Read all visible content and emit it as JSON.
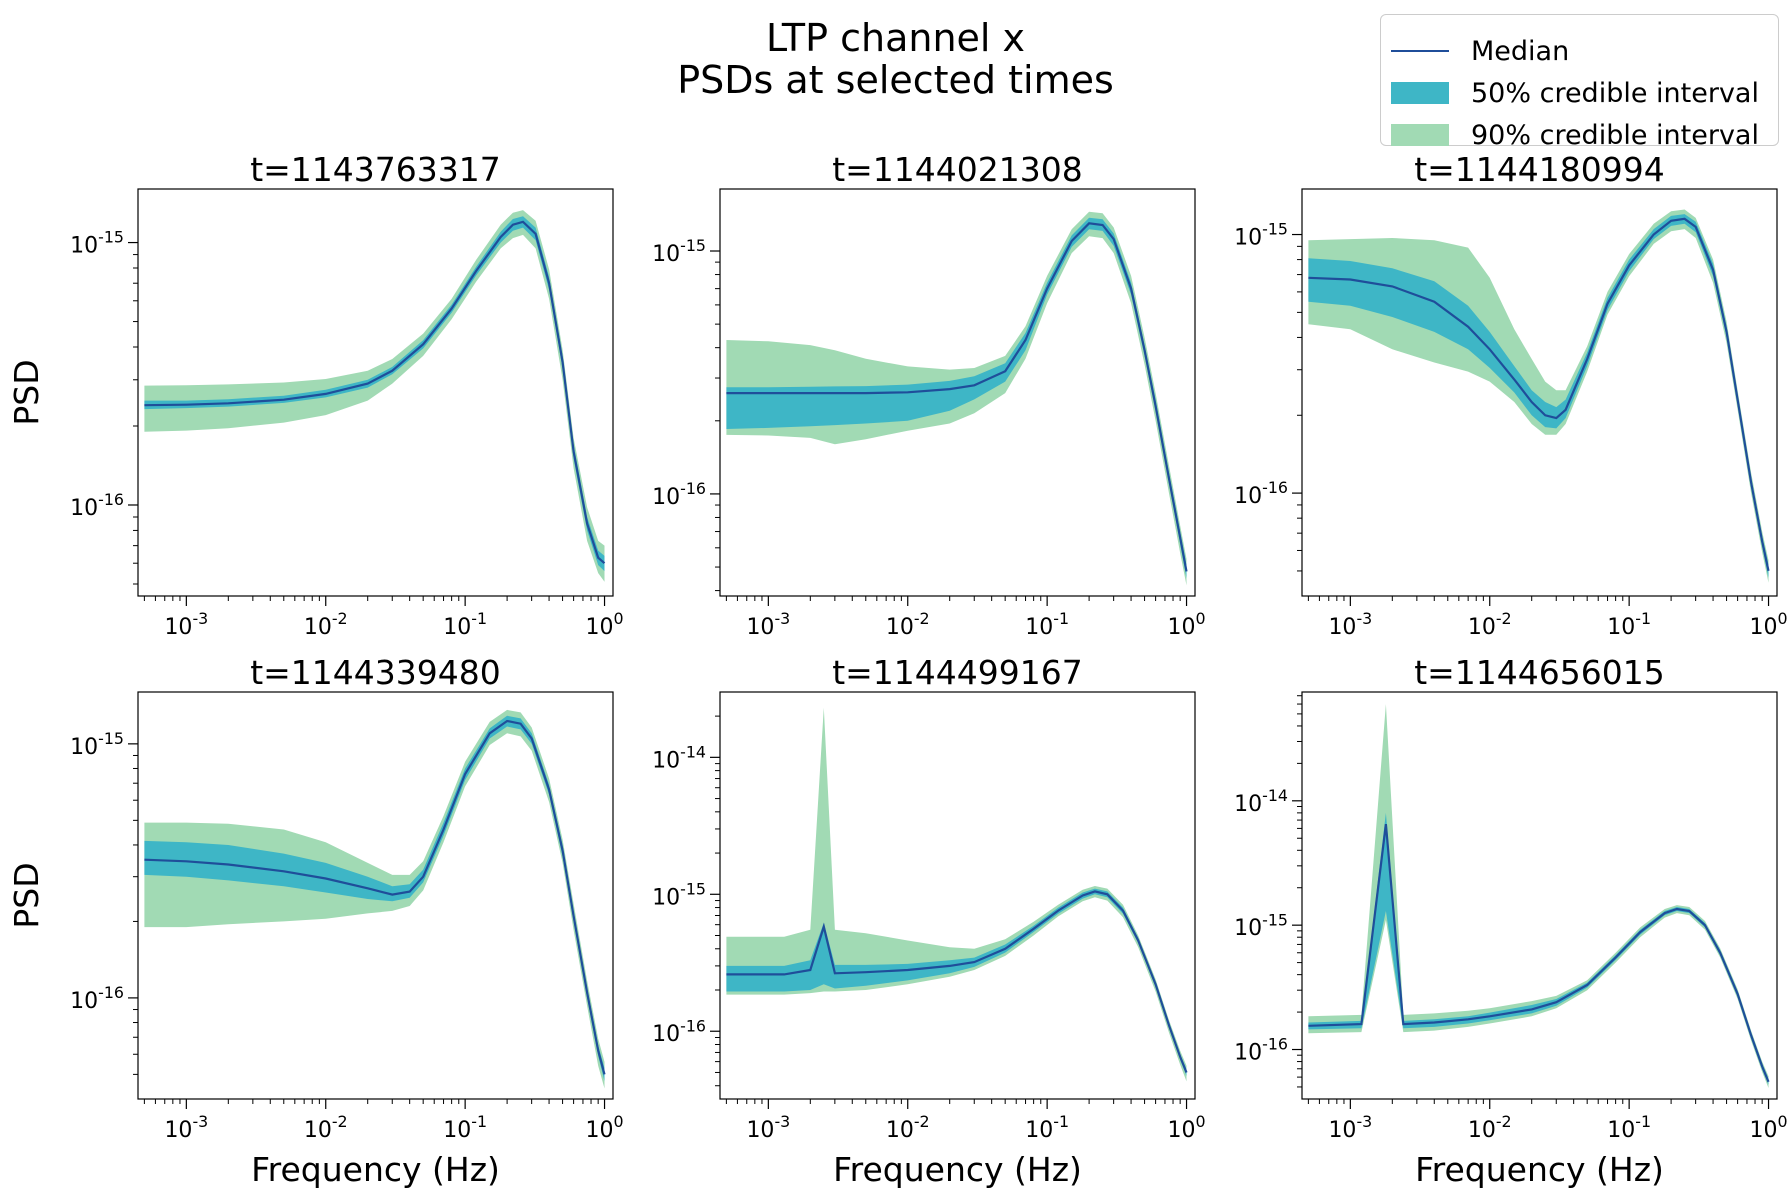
{
  "figure": {
    "title_line1": "LTP channel x",
    "title_line2": "PSDs at selected times"
  },
  "legend": {
    "placement": "top-right",
    "entries": [
      {
        "label": "Median",
        "kind": "line",
        "color": "#1f4e9a"
      },
      {
        "label": "50% credible interval",
        "kind": "patch",
        "color": "#3eb6c6"
      },
      {
        "label": "90% credible interval",
        "kind": "patch",
        "color": "#a1dab4"
      }
    ]
  },
  "colors": {
    "median": "#1f4e9a",
    "ci50": "#3eb6c6",
    "ci90": "#a1dab4",
    "axis": "#000000",
    "background": "#ffffff"
  },
  "chart_data": [
    {
      "type": "line",
      "title": "t=1143763317",
      "xlabel": "",
      "ylabel": "PSD",
      "xscale": "log",
      "yscale": "log",
      "grid": false,
      "xlim": [
        0.00045,
        1.15
      ],
      "ylim": [
        4.5e-17,
        1.6e-15
      ],
      "xticks": [
        0.001,
        0.01,
        0.1,
        1
      ],
      "xtick_labels": [
        "10^-3",
        "10^-2",
        "10^-1",
        "10^0"
      ],
      "yticks": [
        1e-16,
        1e-15
      ],
      "ytick_labels": [
        "10^-16",
        "10^-15"
      ],
      "x": [
        0.0005,
        0.001,
        0.002,
        0.005,
        0.01,
        0.02,
        0.03,
        0.05,
        0.08,
        0.12,
        0.18,
        0.22,
        0.26,
        0.32,
        0.4,
        0.5,
        0.6,
        0.75,
        0.9,
        1.0
      ],
      "median": [
        2.4e-16,
        2.41e-16,
        2.44e-16,
        2.52e-16,
        2.65e-16,
        2.9e-16,
        3.25e-16,
        4.1e-16,
        5.6e-16,
        7.8e-16,
        1.05e-15,
        1.17e-15,
        1.2e-15,
        1.08e-15,
        7e-16,
        3.5e-16,
        1.6e-16,
        8.5e-17,
        6.3e-17,
        6e-17
      ],
      "ci50_low": [
        2.32e-16,
        2.34e-16,
        2.37e-16,
        2.45e-16,
        2.57e-16,
        2.8e-16,
        3.15e-16,
        3.95e-16,
        5.4e-16,
        7.5e-16,
        1e-15,
        1.11e-15,
        1.14e-15,
        1.02e-15,
        6.6e-16,
        3.3e-16,
        1.5e-16,
        8e-17,
        5.9e-17,
        5.6e-17
      ],
      "ci50_high": [
        2.5e-16,
        2.5e-16,
        2.53e-16,
        2.61e-16,
        2.75e-16,
        3e-16,
        3.36e-16,
        4.25e-16,
        5.8e-16,
        8.1e-16,
        1.1e-15,
        1.23e-15,
        1.26e-15,
        1.14e-15,
        7.4e-16,
        3.7e-16,
        1.7e-16,
        9e-17,
        6.7e-17,
        6.4e-17
      ],
      "ci90_low": [
        1.9e-16,
        1.92e-16,
        1.96e-16,
        2.06e-16,
        2.2e-16,
        2.5e-16,
        2.9e-16,
        3.7e-16,
        5.1e-16,
        7.1e-16,
        9.5e-16,
        1.04e-15,
        1.07e-15,
        9.5e-16,
        6.1e-16,
        3e-16,
        1.38e-16,
        7.3e-17,
        5.5e-17,
        5.1e-17
      ],
      "ci90_high": [
        2.85e-16,
        2.86e-16,
        2.88e-16,
        2.93e-16,
        3.02e-16,
        3.25e-16,
        3.6e-16,
        4.5e-16,
        6.1e-16,
        8.6e-16,
        1.17e-15,
        1.3e-15,
        1.33e-15,
        1.21e-15,
        7.9e-16,
        3.9e-16,
        1.8e-16,
        9.8e-17,
        7.3e-17,
        7e-17
      ]
    },
    {
      "type": "line",
      "title": "t=1144021308",
      "xlabel": "",
      "ylabel": "",
      "xscale": "log",
      "yscale": "log",
      "grid": false,
      "xlim": [
        0.00045,
        1.15
      ],
      "ylim": [
        3.8e-17,
        1.8e-15
      ],
      "xticks": [
        0.001,
        0.01,
        0.1,
        1
      ],
      "xtick_labels": [
        "10^-3",
        "10^-2",
        "10^-1",
        "10^0"
      ],
      "yticks": [
        1e-16,
        1e-15
      ],
      "ytick_labels": [
        "10^-16",
        "10^-15"
      ],
      "x": [
        0.0005,
        0.001,
        0.002,
        0.003,
        0.005,
        0.01,
        0.02,
        0.03,
        0.05,
        0.07,
        0.1,
        0.15,
        0.2,
        0.25,
        0.3,
        0.4,
        0.5,
        0.6,
        0.75,
        0.9,
        1.0
      ],
      "median": [
        2.6e-16,
        2.6e-16,
        2.6e-16,
        2.6e-16,
        2.6e-16,
        2.62e-16,
        2.7e-16,
        2.8e-16,
        3.2e-16,
        4.3e-16,
        7e-16,
        1.1e-15,
        1.3e-15,
        1.28e-15,
        1.12e-15,
        7e-16,
        3.9e-16,
        2.3e-16,
        1.15e-16,
        6.6e-17,
        4.8e-17
      ],
      "ci50_low": [
        1.85e-16,
        1.87e-16,
        1.9e-16,
        1.92e-16,
        1.95e-16,
        2e-16,
        2.2e-16,
        2.45e-16,
        2.9e-16,
        3.9e-16,
        6.6e-16,
        1.04e-15,
        1.23e-15,
        1.21e-15,
        1.05e-15,
        6.6e-16,
        3.7e-16,
        2.2e-16,
        1.1e-16,
        6.2e-17,
        4.5e-17
      ],
      "ci50_high": [
        2.75e-16,
        2.75e-16,
        2.76e-16,
        2.77e-16,
        2.78e-16,
        2.82e-16,
        2.92e-16,
        3.05e-16,
        3.45e-16,
        4.6e-16,
        7.4e-16,
        1.16e-15,
        1.37e-15,
        1.35e-15,
        1.18e-15,
        7.4e-16,
        4.1e-16,
        2.45e-16,
        1.22e-16,
        7e-17,
        5.1e-17
      ],
      "ci90_low": [
        1.75e-16,
        1.74e-16,
        1.7e-16,
        1.6e-16,
        1.68e-16,
        1.82e-16,
        1.95e-16,
        2.15e-16,
        2.6e-16,
        3.6e-16,
        6.1e-16,
        9.8e-16,
        1.15e-15,
        1.13e-15,
        9.8e-16,
        6.1e-16,
        3.4e-16,
        2e-16,
        1e-16,
        5.7e-17,
        4.2e-17
      ],
      "ci90_high": [
        4.3e-16,
        4.25e-16,
        4.1e-16,
        3.9e-16,
        3.6e-16,
        3.35e-16,
        3.25e-16,
        3.3e-16,
        3.7e-16,
        4.9e-16,
        7.9e-16,
        1.23e-15,
        1.45e-15,
        1.43e-15,
        1.25e-15,
        7.9e-16,
        4.4e-16,
        2.6e-16,
        1.3e-16,
        7.4e-17,
        5.4e-17
      ]
    },
    {
      "type": "line",
      "title": "t=1144180994",
      "xlabel": "",
      "ylabel": "",
      "xscale": "log",
      "yscale": "log",
      "grid": false,
      "xlim": [
        0.00045,
        1.15
      ],
      "ylim": [
        4e-17,
        1.5e-15
      ],
      "xticks": [
        0.001,
        0.01,
        0.1,
        1
      ],
      "xtick_labels": [
        "10^-3",
        "10^-2",
        "10^-1",
        "10^0"
      ],
      "yticks": [
        1e-16,
        1e-15
      ],
      "ytick_labels": [
        "10^-16",
        "10^-15"
      ],
      "x": [
        0.0005,
        0.001,
        0.002,
        0.004,
        0.007,
        0.01,
        0.015,
        0.02,
        0.025,
        0.03,
        0.035,
        0.05,
        0.07,
        0.1,
        0.15,
        0.2,
        0.25,
        0.3,
        0.4,
        0.5,
        0.6,
        0.75,
        0.9,
        1.0
      ],
      "median": [
        6.8e-16,
        6.7e-16,
        6.3e-16,
        5.5e-16,
        4.4e-16,
        3.6e-16,
        2.75e-16,
        2.25e-16,
        2e-16,
        1.95e-16,
        2.1e-16,
        3.3e-16,
        5.4e-16,
        7.6e-16,
        1e-15,
        1.13e-15,
        1.15e-15,
        1.07e-15,
        7.3e-16,
        4.2e-16,
        2.3e-16,
        1.1e-16,
        6.5e-17,
        5e-17
      ],
      "ci50_low": [
        5.5e-16,
        5.3e-16,
        4.8e-16,
        4.2e-16,
        3.6e-16,
        3.05e-16,
        2.45e-16,
        2e-16,
        1.8e-16,
        1.78e-16,
        1.95e-16,
        3.1e-16,
        5.1e-16,
        7.2e-16,
        9.6e-16,
        1.08e-15,
        1.1e-15,
        1.02e-15,
        6.9e-16,
        4e-16,
        2.2e-16,
        1.05e-16,
        6.2e-17,
        4.7e-17
      ],
      "ci50_high": [
        8.1e-16,
        7.9e-16,
        7.4e-16,
        6.6e-16,
        5.3e-16,
        4.2e-16,
        3.1e-16,
        2.5e-16,
        2.25e-16,
        2.15e-16,
        2.3e-16,
        3.5e-16,
        5.7e-16,
        8e-16,
        1.05e-15,
        1.18e-15,
        1.2e-15,
        1.12e-15,
        7.7e-16,
        4.4e-16,
        2.4e-16,
        1.15e-16,
        6.8e-17,
        5.3e-17
      ],
      "ci90_low": [
        4.5e-16,
        4.3e-16,
        3.6e-16,
        3.2e-16,
        2.95e-16,
        2.7e-16,
        2.25e-16,
        1.85e-16,
        1.68e-16,
        1.68e-16,
        1.85e-16,
        2.95e-16,
        4.9e-16,
        6.9e-16,
        9.2e-16,
        1.03e-15,
        1.05e-15,
        9.7e-16,
        6.5e-16,
        3.8e-16,
        2.1e-16,
        1e-16,
        5.9e-17,
        4.5e-17
      ],
      "ci90_high": [
        9.5e-16,
        9.6e-16,
        9.7e-16,
        9.5e-16,
        8.9e-16,
        6.8e-16,
        4.3e-16,
        3.3e-16,
        2.7e-16,
        2.5e-16,
        2.5e-16,
        3.7e-16,
        6e-16,
        8.4e-16,
        1.1e-15,
        1.23e-15,
        1.25e-15,
        1.16e-15,
        8e-16,
        4.6e-16,
        2.5e-16,
        1.2e-16,
        7.1e-17,
        5.5e-17
      ]
    },
    {
      "type": "line",
      "title": "t=1144339480",
      "xlabel": "Frequency (Hz)",
      "ylabel": "PSD",
      "xscale": "log",
      "yscale": "log",
      "grid": false,
      "xlim": [
        0.00045,
        1.15
      ],
      "ylim": [
        4e-17,
        1.6e-15
      ],
      "xticks": [
        0.001,
        0.01,
        0.1,
        1
      ],
      "xtick_labels": [
        "10^-3",
        "10^-2",
        "10^-1",
        "10^0"
      ],
      "yticks": [
        1e-16,
        1e-15
      ],
      "ytick_labels": [
        "10^-16",
        "10^-15"
      ],
      "x": [
        0.0005,
        0.001,
        0.002,
        0.005,
        0.01,
        0.02,
        0.03,
        0.04,
        0.05,
        0.07,
        0.1,
        0.15,
        0.2,
        0.25,
        0.3,
        0.4,
        0.5,
        0.6,
        0.75,
        0.9,
        1.0
      ],
      "median": [
        3.5e-16,
        3.45e-16,
        3.35e-16,
        3.15e-16,
        2.95e-16,
        2.7e-16,
        2.55e-16,
        2.62e-16,
        3e-16,
        4.6e-16,
        7.6e-16,
        1.1e-15,
        1.23e-15,
        1.2e-15,
        1.05e-15,
        6.6e-16,
        3.8e-16,
        2.1e-16,
        1.05e-16,
        6.2e-17,
        5e-17
      ],
      "ci50_low": [
        3.05e-16,
        3e-16,
        2.9e-16,
        2.75e-16,
        2.6e-16,
        2.45e-16,
        2.4e-16,
        2.48e-16,
        2.85e-16,
        4.35e-16,
        7.2e-16,
        1.05e-15,
        1.17e-15,
        1.14e-15,
        1e-15,
        6.3e-16,
        3.6e-16,
        2e-16,
        1e-16,
        5.9e-17,
        4.7e-17
      ],
      "ci50_high": [
        4.15e-16,
        4.1e-16,
        4e-16,
        3.7e-16,
        3.4e-16,
        3e-16,
        2.75e-16,
        2.8e-16,
        3.2e-16,
        4.9e-16,
        8e-16,
        1.15e-15,
        1.29e-15,
        1.26e-15,
        1.1e-15,
        6.9e-16,
        4e-16,
        2.2e-16,
        1.1e-16,
        6.5e-17,
        5.3e-17
      ],
      "ci90_low": [
        1.9e-16,
        1.9e-16,
        1.95e-16,
        2e-16,
        2.05e-16,
        2.15e-16,
        2.2e-16,
        2.3e-16,
        2.65e-16,
        4.1e-16,
        6.8e-16,
        9.9e-16,
        1.1e-15,
        1.07e-15,
        9.4e-16,
        5.9e-16,
        3.4e-16,
        1.85e-16,
        9.3e-17,
        5.4e-17,
        4.4e-17
      ],
      "ci90_high": [
        4.9e-16,
        4.9e-16,
        4.85e-16,
        4.6e-16,
        4.1e-16,
        3.4e-16,
        3.05e-16,
        3.05e-16,
        3.45e-16,
        5.2e-16,
        8.5e-16,
        1.22e-15,
        1.36e-15,
        1.33e-15,
        1.16e-15,
        7.3e-16,
        4.2e-16,
        2.35e-16,
        1.17e-16,
        6.9e-17,
        5.6e-17
      ]
    },
    {
      "type": "line",
      "title": "t=1144499167",
      "xlabel": "Frequency (Hz)",
      "ylabel": "",
      "xscale": "log",
      "yscale": "log",
      "grid": false,
      "xlim": [
        0.00045,
        1.15
      ],
      "ylim": [
        3.2e-17,
        3e-14
      ],
      "xticks": [
        0.001,
        0.01,
        0.1,
        1
      ],
      "xtick_labels": [
        "10^-3",
        "10^-2",
        "10^-1",
        "10^0"
      ],
      "yticks": [
        1e-16,
        1e-15,
        1e-14
      ],
      "ytick_labels": [
        "10^-16",
        "10^-15",
        "10^-14"
      ],
      "x": [
        0.0005,
        0.0013,
        0.002,
        0.0025,
        0.003,
        0.005,
        0.01,
        0.02,
        0.03,
        0.05,
        0.08,
        0.12,
        0.18,
        0.22,
        0.27,
        0.35,
        0.45,
        0.6,
        0.75,
        0.9,
        1.0
      ],
      "median": [
        2.6e-16,
        2.6e-16,
        2.8e-16,
        5.8e-16,
        2.65e-16,
        2.7e-16,
        2.8e-16,
        3e-16,
        3.2e-16,
        4e-16,
        5.6e-16,
        7.6e-16,
        9.8e-16,
        1.05e-15,
        1e-15,
        7.6e-16,
        4.6e-16,
        2.2e-16,
        1.1e-16,
        6.5e-17,
        5e-17
      ],
      "ci50_low": [
        1.95e-16,
        1.95e-16,
        2e-16,
        2.2e-16,
        2.05e-16,
        2.15e-16,
        2.35e-16,
        2.65e-16,
        2.95e-16,
        3.75e-16,
        5.3e-16,
        7.2e-16,
        9.3e-16,
        1e-15,
        9.5e-16,
        7.2e-16,
        4.4e-16,
        2.1e-16,
        1.05e-16,
        6.2e-17,
        4.7e-17
      ],
      "ci50_high": [
        3e-16,
        3e-16,
        3.3e-16,
        6.2e-16,
        3.05e-16,
        3.05e-16,
        3.1e-16,
        3.3e-16,
        3.45e-16,
        4.3e-16,
        5.9e-16,
        8e-16,
        1.03e-15,
        1.1e-15,
        1.05e-15,
        8e-16,
        4.8e-16,
        2.3e-16,
        1.15e-16,
        6.8e-17,
        5.3e-17
      ],
      "ci90_low": [
        1.85e-16,
        1.85e-16,
        1.9e-16,
        1.95e-16,
        1.95e-16,
        2e-16,
        2.2e-16,
        2.5e-16,
        2.8e-16,
        3.55e-16,
        5e-16,
        6.9e-16,
        8.9e-16,
        9.5e-16,
        9e-16,
        6.8e-16,
        4.1e-16,
        1.95e-16,
        9.7e-17,
        5.7e-17,
        4.3e-17
      ],
      "ci90_high": [
        4.9e-16,
        4.9e-16,
        5.5e-16,
        2.3e-14,
        5.5e-16,
        5.2e-16,
        4.6e-16,
        4.1e-16,
        4e-16,
        4.7e-16,
        6.3e-16,
        8.4e-16,
        1.08e-15,
        1.15e-15,
        1.1e-15,
        8.4e-16,
        5e-16,
        2.4e-16,
        1.2e-16,
        7.2e-17,
        5.6e-17
      ]
    },
    {
      "type": "line",
      "title": "t=1144656015",
      "xlabel": "Frequency (Hz)",
      "ylabel": "",
      "xscale": "log",
      "yscale": "log",
      "grid": false,
      "xlim": [
        0.00045,
        1.15
      ],
      "ylim": [
        4e-17,
        7.5e-14
      ],
      "xticks": [
        0.001,
        0.01,
        0.1,
        1
      ],
      "xtick_labels": [
        "10^-3",
        "10^-2",
        "10^-1",
        "10^0"
      ],
      "yticks": [
        1e-16,
        1e-15,
        1e-14
      ],
      "ytick_labels": [
        "10^-16",
        "10^-15",
        "10^-14"
      ],
      "x": [
        0.0005,
        0.0012,
        0.0018,
        0.0024,
        0.004,
        0.007,
        0.01,
        0.02,
        0.03,
        0.05,
        0.08,
        0.12,
        0.18,
        0.22,
        0.27,
        0.35,
        0.45,
        0.6,
        0.75,
        0.9,
        1.0
      ],
      "median": [
        1.55e-16,
        1.6e-16,
        6.5e-15,
        1.6e-16,
        1.65e-16,
        1.75e-16,
        1.85e-16,
        2.1e-16,
        2.4e-16,
        3.3e-16,
        5.5e-16,
        8.8e-16,
        1.25e-15,
        1.35e-15,
        1.3e-15,
        1e-15,
        6e-16,
        2.8e-16,
        1.3e-16,
        7.3e-17,
        5.5e-17
      ],
      "ci50_low": [
        1.45e-16,
        1.48e-16,
        1.3e-15,
        1.48e-16,
        1.52e-16,
        1.62e-16,
        1.72e-16,
        1.95e-16,
        2.25e-16,
        3.15e-16,
        5.25e-16,
        8.4e-16,
        1.2e-15,
        1.3e-15,
        1.25e-15,
        9.6e-16,
        5.7e-16,
        2.65e-16,
        1.23e-16,
        6.9e-17,
        5.2e-17
      ],
      "ci50_high": [
        1.65e-16,
        1.7e-16,
        8e-15,
        1.7e-16,
        1.75e-16,
        1.85e-16,
        1.98e-16,
        2.28e-16,
        2.55e-16,
        3.45e-16,
        5.75e-16,
        9.2e-16,
        1.3e-15,
        1.4e-15,
        1.35e-15,
        1.04e-15,
        6.3e-16,
        2.95e-16,
        1.37e-16,
        7.7e-17,
        5.8e-17
      ],
      "ci90_low": [
        1.35e-16,
        1.38e-16,
        1.1e-15,
        1.38e-16,
        1.42e-16,
        1.52e-16,
        1.62e-16,
        1.85e-16,
        2.15e-16,
        3e-16,
        5e-16,
        8e-16,
        1.15e-15,
        1.25e-15,
        1.2e-15,
        9.2e-16,
        5.5e-16,
        2.55e-16,
        1.18e-16,
        6.6e-17,
        4.9e-17
      ],
      "ci90_high": [
        1.85e-16,
        1.9e-16,
        6e-14,
        1.9e-16,
        1.95e-16,
        2.05e-16,
        2.15e-16,
        2.45e-16,
        2.7e-16,
        3.6e-16,
        6e-16,
        9.6e-16,
        1.35e-15,
        1.45e-15,
        1.4e-15,
        1.08e-15,
        6.5e-16,
        3.05e-16,
        1.42e-16,
        8e-17,
        6.1e-17
      ]
    }
  ]
}
